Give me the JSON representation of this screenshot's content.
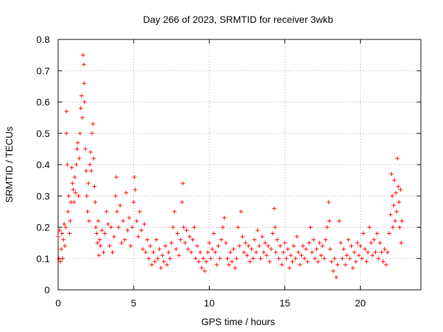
{
  "chart_data": {
    "type": "scatter",
    "title": "Day 266 of 2023, SRMTID for receiver 3wkb",
    "xlabel": "GPS time / hours",
    "ylabel": "SRMTID / TECUs",
    "xlim": [
      0,
      24
    ],
    "ylim": [
      0,
      0.8
    ],
    "xticks": [
      0,
      5,
      10,
      15,
      20
    ],
    "yticks": [
      0,
      0.1,
      0.2,
      0.3,
      0.4,
      0.5,
      0.6,
      0.7,
      0.8
    ],
    "xtick_labels": [
      "0",
      "5",
      "10",
      "15",
      "20"
    ],
    "ytick_labels": [
      "0",
      "0.1",
      "0.2",
      "0.3",
      "0.4",
      "0.5",
      "0.6",
      "0.7",
      "0.8"
    ],
    "grid": true,
    "marker": "+",
    "color": "#ff0000",
    "series": [
      {
        "name": "SRMTID",
        "points": [
          [
            0.0,
            0.17
          ],
          [
            0.05,
            0.1
          ],
          [
            0.1,
            0.19
          ],
          [
            0.15,
            0.09
          ],
          [
            0.2,
            0.13
          ],
          [
            0.25,
            0.18
          ],
          [
            0.3,
            0.1
          ],
          [
            0.35,
            0.16
          ],
          [
            0.4,
            0.21
          ],
          [
            0.45,
            0.14
          ],
          [
            0.5,
            0.2
          ],
          [
            0.55,
            0.57
          ],
          [
            0.55,
            0.5
          ],
          [
            0.6,
            0.4
          ],
          [
            0.65,
            0.25
          ],
          [
            0.7,
            0.3
          ],
          [
            0.75,
            0.18
          ],
          [
            0.8,
            0.22
          ],
          [
            0.85,
            0.28
          ],
          [
            0.9,
            0.39
          ],
          [
            0.95,
            0.34
          ],
          [
            1.0,
            0.32
          ],
          [
            1.05,
            0.28
          ],
          [
            1.1,
            0.36
          ],
          [
            1.15,
            0.31
          ],
          [
            1.2,
            0.4
          ],
          [
            1.25,
            0.45
          ],
          [
            1.3,
            0.47
          ],
          [
            1.35,
            0.3
          ],
          [
            1.4,
            0.42
          ],
          [
            1.45,
            0.5
          ],
          [
            1.5,
            0.58
          ],
          [
            1.55,
            0.62
          ],
          [
            1.6,
            0.55
          ],
          [
            1.65,
            0.75
          ],
          [
            1.7,
            0.72
          ],
          [
            1.72,
            0.66
          ],
          [
            1.75,
            0.6
          ],
          [
            1.8,
            0.45
          ],
          [
            1.85,
            0.38
          ],
          [
            1.9,
            0.3
          ],
          [
            1.95,
            0.25
          ],
          [
            2.0,
            0.34
          ],
          [
            2.05,
            0.22
          ],
          [
            2.1,
            0.4
          ],
          [
            2.15,
            0.44
          ],
          [
            2.2,
            0.38
          ],
          [
            2.25,
            0.5
          ],
          [
            2.3,
            0.53
          ],
          [
            2.35,
            0.42
          ],
          [
            2.4,
            0.33
          ],
          [
            2.45,
            0.28
          ],
          [
            2.5,
            0.2
          ],
          [
            2.55,
            0.18
          ],
          [
            2.6,
            0.15
          ],
          [
            2.65,
            0.22
          ],
          [
            2.7,
            0.11
          ],
          [
            2.75,
            0.16
          ],
          [
            2.8,
            0.14
          ],
          [
            2.9,
            0.19
          ],
          [
            3.0,
            0.12
          ],
          [
            3.1,
            0.18
          ],
          [
            3.2,
            0.25
          ],
          [
            3.3,
            0.21
          ],
          [
            3.4,
            0.14
          ],
          [
            3.5,
            0.2
          ],
          [
            3.6,
            0.12
          ],
          [
            3.7,
            0.17
          ],
          [
            3.8,
            0.3
          ],
          [
            3.85,
            0.36
          ],
          [
            3.9,
            0.25
          ],
          [
            4.0,
            0.2
          ],
          [
            4.1,
            0.27
          ],
          [
            4.2,
            0.15
          ],
          [
            4.3,
            0.22
          ],
          [
            4.4,
            0.16
          ],
          [
            4.5,
            0.31
          ],
          [
            4.6,
            0.19
          ],
          [
            4.7,
            0.23
          ],
          [
            4.8,
            0.14
          ],
          [
            4.9,
            0.2
          ],
          [
            5.0,
            0.28
          ],
          [
            5.05,
            0.36
          ],
          [
            5.1,
            0.32
          ],
          [
            5.2,
            0.22
          ],
          [
            5.3,
            0.17
          ],
          [
            5.4,
            0.25
          ],
          [
            5.5,
            0.19
          ],
          [
            5.6,
            0.13
          ],
          [
            5.7,
            0.21
          ],
          [
            5.8,
            0.12
          ],
          [
            5.9,
            0.16
          ],
          [
            6.0,
            0.1
          ],
          [
            6.1,
            0.14
          ],
          [
            6.2,
            0.08
          ],
          [
            6.3,
            0.12
          ],
          [
            6.4,
            0.09
          ],
          [
            6.5,
            0.16
          ],
          [
            6.6,
            0.1
          ],
          [
            6.7,
            0.13
          ],
          [
            6.8,
            0.07
          ],
          [
            6.9,
            0.11
          ],
          [
            7.0,
            0.09
          ],
          [
            7.1,
            0.14
          ],
          [
            7.2,
            0.08
          ],
          [
            7.3,
            0.12
          ],
          [
            7.4,
            0.1
          ],
          [
            7.5,
            0.15
          ],
          [
            7.6,
            0.2
          ],
          [
            7.7,
            0.25
          ],
          [
            7.8,
            0.13
          ],
          [
            7.9,
            0.18
          ],
          [
            8.0,
            0.11
          ],
          [
            8.1,
            0.16
          ],
          [
            8.2,
            0.28
          ],
          [
            8.25,
            0.34
          ],
          [
            8.3,
            0.2
          ],
          [
            8.4,
            0.15
          ],
          [
            8.5,
            0.19
          ],
          [
            8.6,
            0.13
          ],
          [
            8.7,
            0.17
          ],
          [
            8.8,
            0.12
          ],
          [
            8.9,
            0.16
          ],
          [
            9.0,
            0.2
          ],
          [
            9.1,
            0.1
          ],
          [
            9.2,
            0.14
          ],
          [
            9.3,
            0.09
          ],
          [
            9.4,
            0.12
          ],
          [
            9.5,
            0.07
          ],
          [
            9.6,
            0.1
          ],
          [
            9.7,
            0.06
          ],
          [
            9.8,
            0.09
          ],
          [
            9.9,
            0.12
          ],
          [
            10.0,
            0.15
          ],
          [
            10.1,
            0.1
          ],
          [
            10.2,
            0.13
          ],
          [
            10.3,
            0.18
          ],
          [
            10.4,
            0.12
          ],
          [
            10.5,
            0.08
          ],
          [
            10.6,
            0.14
          ],
          [
            10.7,
            0.1
          ],
          [
            10.8,
            0.16
          ],
          [
            10.9,
            0.2
          ],
          [
            11.0,
            0.23
          ],
          [
            11.1,
            0.15
          ],
          [
            11.2,
            0.1
          ],
          [
            11.3,
            0.08
          ],
          [
            11.4,
            0.12
          ],
          [
            11.5,
            0.09
          ],
          [
            11.6,
            0.13
          ],
          [
            11.7,
            0.07
          ],
          [
            11.8,
            0.1
          ],
          [
            11.9,
            0.2
          ],
          [
            12.0,
            0.14
          ],
          [
            12.1,
            0.25
          ],
          [
            12.2,
            0.17
          ],
          [
            12.3,
            0.12
          ],
          [
            12.4,
            0.15
          ],
          [
            12.5,
            0.11
          ],
          [
            12.6,
            0.14
          ],
          [
            12.7,
            0.09
          ],
          [
            12.8,
            0.13
          ],
          [
            12.9,
            0.1
          ],
          [
            13.0,
            0.16
          ],
          [
            13.1,
            0.12
          ],
          [
            13.2,
            0.19
          ],
          [
            13.3,
            0.14
          ],
          [
            13.4,
            0.1
          ],
          [
            13.5,
            0.17
          ],
          [
            13.6,
            0.12
          ],
          [
            13.7,
            0.15
          ],
          [
            13.8,
            0.11
          ],
          [
            13.9,
            0.14
          ],
          [
            14.0,
            0.09
          ],
          [
            14.1,
            0.13
          ],
          [
            14.2,
            0.18
          ],
          [
            14.3,
            0.26
          ],
          [
            14.35,
            0.2
          ],
          [
            14.4,
            0.12
          ],
          [
            14.5,
            0.16
          ],
          [
            14.6,
            0.1
          ],
          [
            14.7,
            0.14
          ],
          [
            14.8,
            0.08
          ],
          [
            14.9,
            0.12
          ],
          [
            15.0,
            0.15
          ],
          [
            15.1,
            0.1
          ],
          [
            15.2,
            0.13
          ],
          [
            15.3,
            0.07
          ],
          [
            15.4,
            0.11
          ],
          [
            15.5,
            0.09
          ],
          [
            15.6,
            0.14
          ],
          [
            15.7,
            0.1
          ],
          [
            15.8,
            0.17
          ],
          [
            15.9,
            0.12
          ],
          [
            16.0,
            0.08
          ],
          [
            16.1,
            0.11
          ],
          [
            16.2,
            0.14
          ],
          [
            16.3,
            0.1
          ],
          [
            16.4,
            0.13
          ],
          [
            16.5,
            0.09
          ],
          [
            16.6,
            0.15
          ],
          [
            16.7,
            0.2
          ],
          [
            16.8,
            0.12
          ],
          [
            16.9,
            0.16
          ],
          [
            17.0,
            0.1
          ],
          [
            17.1,
            0.13
          ],
          [
            17.2,
            0.09
          ],
          [
            17.3,
            0.15
          ],
          [
            17.4,
            0.11
          ],
          [
            17.5,
            0.14
          ],
          [
            17.6,
            0.1
          ],
          [
            17.7,
            0.16
          ],
          [
            17.8,
            0.2
          ],
          [
            17.9,
            0.28
          ],
          [
            17.95,
            0.22
          ],
          [
            18.0,
            0.13
          ],
          [
            18.1,
            0.09
          ],
          [
            18.2,
            0.06
          ],
          [
            18.3,
            0.1
          ],
          [
            18.4,
            0.04
          ],
          [
            18.5,
            0.08
          ],
          [
            18.6,
            0.22
          ],
          [
            18.7,
            0.15
          ],
          [
            18.8,
            0.1
          ],
          [
            18.9,
            0.13
          ],
          [
            19.0,
            0.08
          ],
          [
            19.1,
            0.11
          ],
          [
            19.2,
            0.16
          ],
          [
            19.3,
            0.1
          ],
          [
            19.4,
            0.14
          ],
          [
            19.5,
            0.07
          ],
          [
            19.6,
            0.12
          ],
          [
            19.7,
            0.09
          ],
          [
            19.8,
            0.15
          ],
          [
            19.9,
            0.11
          ],
          [
            20.0,
            0.14
          ],
          [
            20.1,
            0.1
          ],
          [
            20.2,
            0.18
          ],
          [
            20.3,
            0.13
          ],
          [
            20.4,
            0.09
          ],
          [
            20.5,
            0.12
          ],
          [
            20.6,
            0.2
          ],
          [
            20.7,
            0.15
          ],
          [
            20.8,
            0.11
          ],
          [
            20.9,
            0.16
          ],
          [
            21.0,
            0.12
          ],
          [
            21.1,
            0.18
          ],
          [
            21.2,
            0.1
          ],
          [
            21.3,
            0.15
          ],
          [
            21.4,
            0.12
          ],
          [
            21.5,
            0.09
          ],
          [
            21.6,
            0.13
          ],
          [
            21.7,
            0.08
          ],
          [
            21.8,
            0.12
          ],
          [
            21.9,
            0.18
          ],
          [
            22.0,
            0.24
          ],
          [
            22.05,
            0.37
          ],
          [
            22.1,
            0.3
          ],
          [
            22.15,
            0.2
          ],
          [
            22.2,
            0.27
          ],
          [
            22.25,
            0.35
          ],
          [
            22.3,
            0.22
          ],
          [
            22.35,
            0.31
          ],
          [
            22.4,
            0.25
          ],
          [
            22.45,
            0.42
          ],
          [
            22.5,
            0.33
          ],
          [
            22.55,
            0.28
          ],
          [
            22.6,
            0.2
          ],
          [
            22.65,
            0.32
          ],
          [
            22.7,
            0.15
          ],
          [
            22.75,
            0.22
          ]
        ]
      }
    ]
  }
}
